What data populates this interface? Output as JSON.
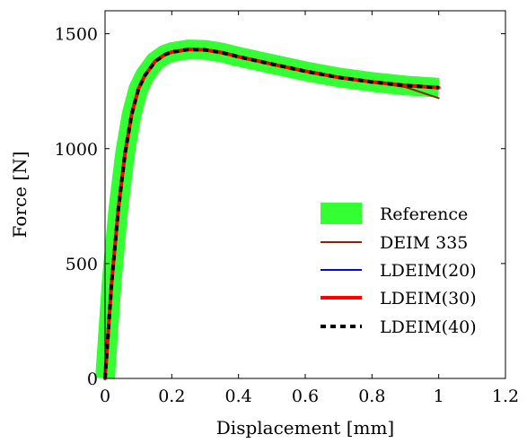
{
  "chart_data": {
    "type": "line",
    "title": "",
    "xlabel": "Displacement [mm]",
    "ylabel": "Force [N]",
    "xlim": [
      0,
      1.2
    ],
    "ylim": [
      0,
      1600
    ],
    "xticks": [
      0,
      0.2,
      0.4,
      0.6,
      0.8,
      1,
      1.2
    ],
    "xtick_labels": [
      "0",
      "0.2",
      "0.4",
      "0.6",
      "0.8",
      "1",
      "1.2"
    ],
    "yticks": [
      0,
      500,
      1000,
      1500
    ],
    "ytick_labels": [
      "0",
      "500",
      "1000",
      "1500"
    ],
    "grid": false,
    "legend_position": "bottom-right",
    "x": [
      0,
      0.02,
      0.04,
      0.06,
      0.08,
      0.1,
      0.12,
      0.15,
      0.18,
      0.2,
      0.25,
      0.3,
      0.35,
      0.4,
      0.5,
      0.6,
      0.7,
      0.8,
      0.9,
      1.0
    ],
    "series": [
      {
        "name": "Reference",
        "color": "#33ff33",
        "style": "band",
        "y": [
          0,
          420,
          740,
          980,
          1150,
          1260,
          1320,
          1380,
          1410,
          1420,
          1432,
          1430,
          1418,
          1400,
          1368,
          1337,
          1310,
          1290,
          1275,
          1265
        ]
      },
      {
        "name": "DEIM 335",
        "color": "#8b2500",
        "style": "solid",
        "y": [
          0,
          420,
          740,
          980,
          1150,
          1260,
          1320,
          1380,
          1410,
          1420,
          1432,
          1430,
          1418,
          1400,
          1368,
          1337,
          1310,
          1290,
          1268,
          1220
        ]
      },
      {
        "name": "LDEIM(20)",
        "color": "#0000ff",
        "style": "solid",
        "y": [
          0,
          420,
          740,
          980,
          1150,
          1260,
          1320,
          1380,
          1410,
          1420,
          1432,
          1430,
          1418,
          1400,
          1368,
          1337,
          1310,
          1290,
          1275,
          1265
        ]
      },
      {
        "name": "LDEIM(30)",
        "color": "#ff0000",
        "style": "thick",
        "y": [
          0,
          420,
          740,
          980,
          1150,
          1260,
          1320,
          1380,
          1410,
          1420,
          1432,
          1430,
          1418,
          1400,
          1368,
          1337,
          1310,
          1290,
          1275,
          1265
        ]
      },
      {
        "name": "LDEIM(40)",
        "color": "#000000",
        "style": "dashed",
        "y": [
          0,
          420,
          740,
          980,
          1150,
          1260,
          1320,
          1380,
          1410,
          1420,
          1432,
          1430,
          1418,
          1400,
          1368,
          1337,
          1310,
          1290,
          1275,
          1265
        ]
      }
    ]
  }
}
